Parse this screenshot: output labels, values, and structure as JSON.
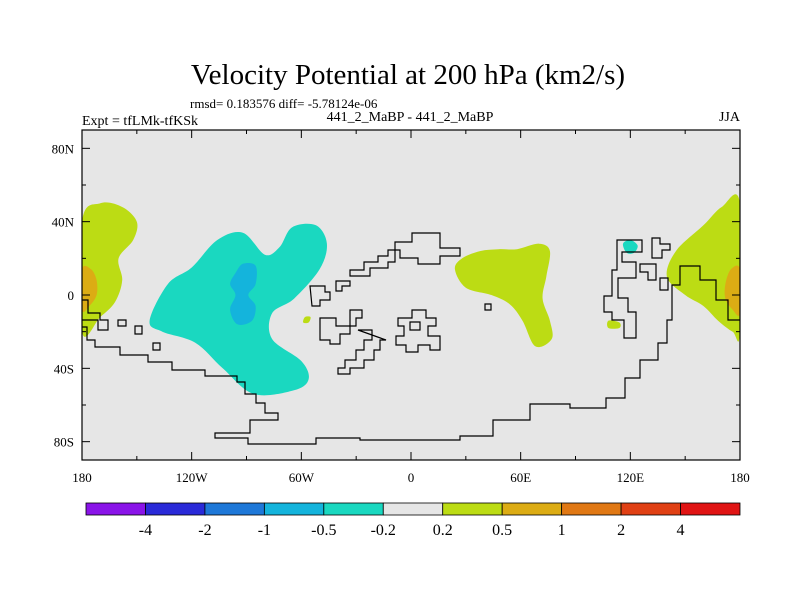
{
  "chart_data": {
    "type": "heatmap",
    "title": "Velocity Potential at 200 hPa (km2/s)",
    "stats_text": "rmsd= 0.183576 diff= -5.78124e-06",
    "left_label": "Expt = tfLMk-tfKSk",
    "center_label": "441_2_MaBP - 441_2_MaBP",
    "right_label": "JJA",
    "x_axis": {
      "range": [
        -180,
        180
      ],
      "ticks": [
        {
          "value": -180,
          "label": "180"
        },
        {
          "value": -120,
          "label": "120W"
        },
        {
          "value": -60,
          "label": "60W"
        },
        {
          "value": 0,
          "label": "0"
        },
        {
          "value": 60,
          "label": "60E"
        },
        {
          "value": 120,
          "label": "120E"
        },
        {
          "value": 180,
          "label": "180"
        }
      ]
    },
    "y_axis": {
      "range": [
        -90,
        90
      ],
      "ticks": [
        {
          "value": 80,
          "label": "80N"
        },
        {
          "value": 40,
          "label": "40N"
        },
        {
          "value": 0,
          "label": "0"
        },
        {
          "value": -40,
          "label": "40S"
        },
        {
          "value": -80,
          "label": "80S"
        }
      ]
    },
    "background_color": "#e6e6e6",
    "colorbar": {
      "levels": [
        "-4",
        "-2",
        "-1",
        "-0.5",
        "-0.2",
        "0.2",
        "0.5",
        "1",
        "2",
        "4"
      ],
      "colors": [
        "#8a14e8",
        "#2a2ad8",
        "#1e78d8",
        "#14b4dc",
        "#1ad8c0",
        "#e6e6e6",
        "#bcdc14",
        "#dcac14",
        "#e07814",
        "#e04014",
        "#e01414"
      ]
    },
    "regions": [
      {
        "name": "central-pacific-west-positive",
        "level": "0.2-0.5",
        "color": "#bcdc14",
        "boundary": [
          [
            -180,
            40
          ],
          [
            -170,
            50
          ],
          [
            -158,
            48
          ],
          [
            -150,
            40
          ],
          [
            -152,
            30
          ],
          [
            -160,
            20
          ],
          [
            -158,
            8
          ],
          [
            -162,
            -4
          ],
          [
            -170,
            -12
          ],
          [
            -180,
            -20
          ]
        ]
      },
      {
        "name": "central-pacific-west-core",
        "level": "0.5-1",
        "color": "#dcac14",
        "boundary": [
          [
            -180,
            14
          ],
          [
            -175,
            14
          ],
          [
            -172,
            8
          ],
          [
            -172,
            0
          ],
          [
            -176,
            -6
          ],
          [
            -180,
            -8
          ]
        ]
      },
      {
        "name": "central-pacific-east-positive",
        "level": "0.2-0.5",
        "color": "#bcdc14",
        "boundary": [
          [
            180,
            50
          ],
          [
            170,
            48
          ],
          [
            160,
            38
          ],
          [
            145,
            24
          ],
          [
            140,
            10
          ],
          [
            150,
            0
          ],
          [
            160,
            -6
          ],
          [
            168,
            -14
          ],
          [
            176,
            -20
          ],
          [
            180,
            -20
          ]
        ]
      },
      {
        "name": "central-pacific-east-core",
        "level": "0.5-1",
        "color": "#dcac14",
        "boundary": [
          [
            180,
            14
          ],
          [
            175,
            14
          ],
          [
            172,
            6
          ],
          [
            172,
            -2
          ],
          [
            176,
            -8
          ],
          [
            180,
            -10
          ]
        ]
      },
      {
        "name": "americas-negative",
        "level": "-0.5 to -0.2",
        "color": "#1ad8c0",
        "boundary": [
          [
            -143,
            -14
          ],
          [
            -133,
            6
          ],
          [
            -120,
            15
          ],
          [
            -106,
            30
          ],
          [
            -92,
            34
          ],
          [
            -80,
            22
          ],
          [
            -72,
            26
          ],
          [
            -65,
            37
          ],
          [
            -52,
            38
          ],
          [
            -46,
            28
          ],
          [
            -50,
            14
          ],
          [
            -64,
            -2
          ],
          [
            -76,
            -10
          ],
          [
            -76,
            -24
          ],
          [
            -60,
            -36
          ],
          [
            -56,
            -46
          ],
          [
            -64,
            -52
          ],
          [
            -86,
            -54
          ],
          [
            -103,
            -40
          ],
          [
            -118,
            -26
          ],
          [
            -136,
            -20
          ]
        ]
      },
      {
        "name": "americas-core",
        "level": "-1 to -0.5",
        "color": "#14b4dc",
        "boundary": [
          [
            -96,
            12
          ],
          [
            -92,
            17
          ],
          [
            -85,
            16
          ],
          [
            -85,
            6
          ],
          [
            -89,
            0
          ],
          [
            -85,
            -6
          ],
          [
            -87,
            -14
          ],
          [
            -95,
            -16
          ],
          [
            -99,
            -8
          ],
          [
            -96,
            0
          ],
          [
            -99,
            6
          ]
        ]
      },
      {
        "name": "africa-positive",
        "level": "0.2-0.5",
        "color": "#bcdc14",
        "boundary": [
          [
            24,
            14
          ],
          [
            28,
            20
          ],
          [
            38,
            24
          ],
          [
            48,
            25
          ],
          [
            58,
            25
          ],
          [
            70,
            28
          ],
          [
            76,
            24
          ],
          [
            74,
            10
          ],
          [
            72,
            -2
          ],
          [
            76,
            -14
          ],
          [
            77,
            -24
          ],
          [
            68,
            -28
          ],
          [
            61,
            -14
          ],
          [
            54,
            -5
          ],
          [
            44,
            0
          ],
          [
            30,
            4
          ]
        ]
      },
      {
        "name": "maritime-negative-small",
        "level": "-0.5 to -0.2",
        "color": "#1ad8c0",
        "boundary": [
          [
            116,
            28
          ],
          [
            120,
            30
          ],
          [
            124,
            27
          ],
          [
            122,
            23
          ],
          [
            118,
            23
          ]
        ]
      },
      {
        "name": "atlantic-small-positive",
        "level": "0.2-0.5",
        "color": "#bcdc14",
        "boundary": [
          [
            -58,
            -12
          ],
          [
            -55,
            -12
          ],
          [
            -56,
            -15
          ],
          [
            -59,
            -15
          ]
        ]
      },
      {
        "name": "indian-small-positive",
        "level": "0.2-0.5",
        "color": "#bcdc14",
        "boundary": [
          [
            108,
            -14
          ],
          [
            114,
            -15
          ],
          [
            114,
            -18
          ],
          [
            108,
            -18
          ]
        ]
      }
    ]
  }
}
